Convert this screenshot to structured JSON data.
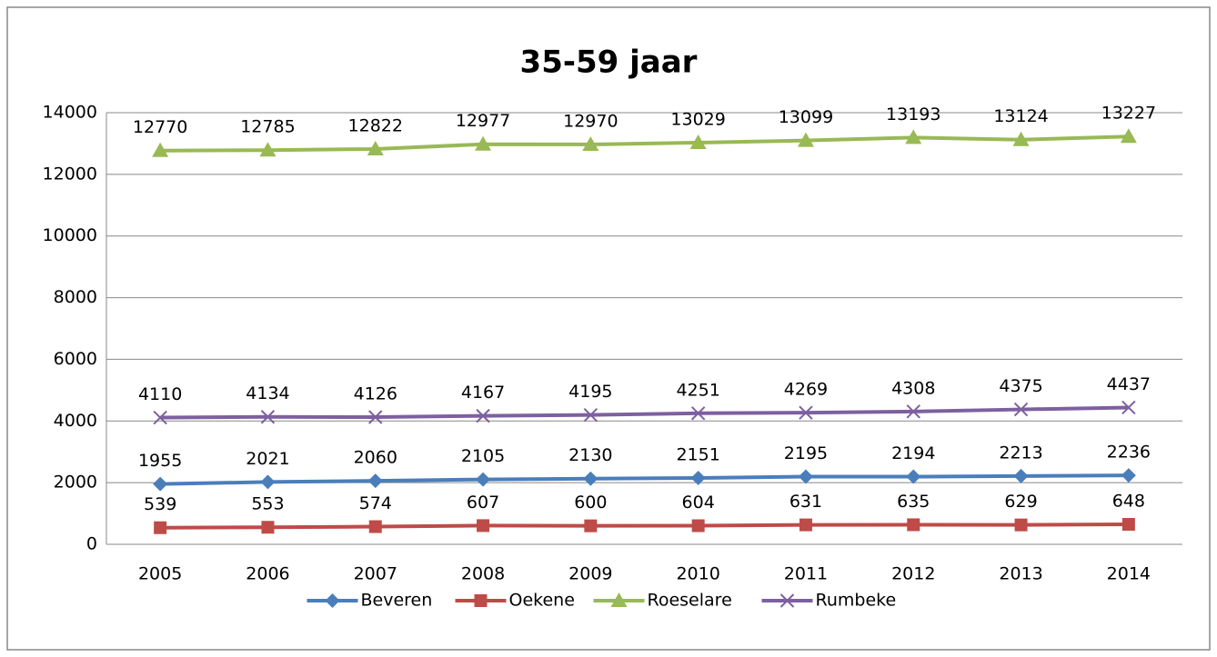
{
  "chart_data": {
    "type": "line",
    "title": "35-59 jaar",
    "categories": [
      "2005",
      "2006",
      "2007",
      "2008",
      "2009",
      "2010",
      "2011",
      "2012",
      "2013",
      "2014"
    ],
    "series": [
      {
        "name": "Beveren",
        "color": "#4a7ebb",
        "marker": "diamond",
        "values": [
          1955,
          2021,
          2060,
          2105,
          2130,
          2151,
          2195,
          2194,
          2213,
          2236
        ]
      },
      {
        "name": "Oekene",
        "color": "#be4b48",
        "marker": "square",
        "values": [
          539,
          553,
          574,
          607,
          600,
          604,
          631,
          635,
          629,
          648
        ]
      },
      {
        "name": "Roeselare",
        "color": "#98b954",
        "marker": "triangle",
        "values": [
          12770,
          12785,
          12822,
          12977,
          12970,
          13029,
          13099,
          13193,
          13124,
          13227
        ]
      },
      {
        "name": "Rumbeke",
        "color": "#7d60a0",
        "marker": "x",
        "values": [
          4110,
          4134,
          4126,
          4167,
          4195,
          4251,
          4269,
          4308,
          4375,
          4437
        ]
      }
    ],
    "ylim": [
      0,
      14000
    ],
    "yticks": [
      0,
      2000,
      4000,
      6000,
      8000,
      10000,
      12000,
      14000
    ],
    "grid": true,
    "legend": "bottom"
  }
}
